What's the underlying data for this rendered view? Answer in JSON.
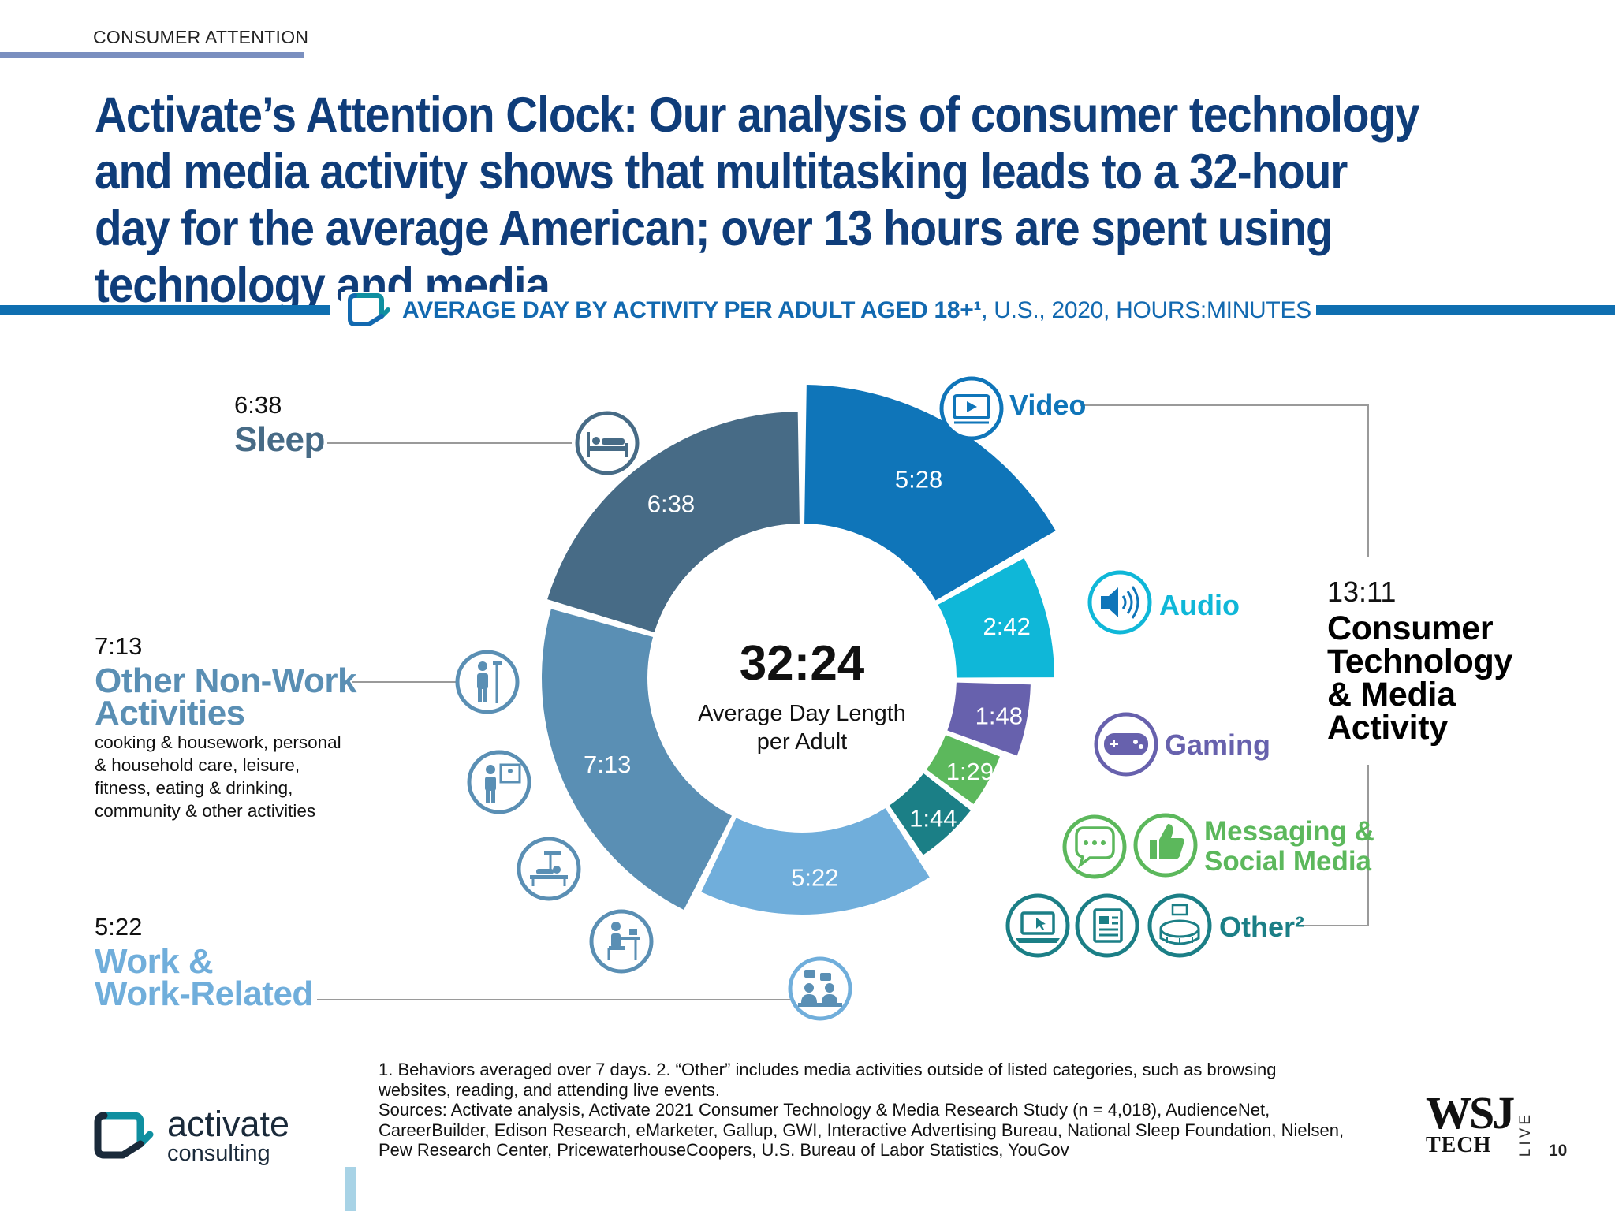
{
  "header": {
    "section_label": "CONSUMER ATTENTION",
    "headline": "Activate’s Attention Clock: Our analysis of consumer technology and media activity shows that multitasking leads to a 32-hour day for the average American; over 13 hours are spent using technology and media"
  },
  "subtitle": {
    "bold": "AVERAGE DAY BY ACTIVITY PER ADULT AGED 18+¹",
    "regular": ", U.S., 2020, HOURS:MINUTES"
  },
  "chart_data": {
    "type": "pie",
    "subtype": "donut",
    "unit": "hours:minutes",
    "center": {
      "value": "32:24",
      "label_line1": "Average Day Length",
      "label_line2": "per Adult"
    },
    "slices": [
      {
        "name": "Video",
        "label": "5:28",
        "minutes": 328,
        "color": "#0f75b9"
      },
      {
        "name": "Audio",
        "label": "2:42",
        "minutes": 162,
        "color": "#0fb7d8"
      },
      {
        "name": "Gaming",
        "label": "1:48",
        "minutes": 108,
        "color": "#6761ad"
      },
      {
        "name": "Messaging & Social Media",
        "label": "1:29",
        "minutes": 89,
        "color": "#5cb85c"
      },
      {
        "name": "Other²",
        "label": "1:44",
        "minutes": 104,
        "color": "#1b7f86"
      },
      {
        "name": "Work & Work-Related",
        "label": "5:22",
        "minutes": 322,
        "color": "#70aedb"
      },
      {
        "name": "Other Non-Work Activities",
        "label": "7:13",
        "minutes": 433,
        "color": "#5a8fb4"
      },
      {
        "name": "Sleep",
        "label": "6:38",
        "minutes": 398,
        "color": "#476b86"
      }
    ]
  },
  "left_labels": {
    "sleep": {
      "value": "6:38",
      "name": "Sleep",
      "color": "#476b86"
    },
    "other_nonwork": {
      "value": "7:13",
      "name_line1": "Other Non-Work",
      "name_line2": "Activities",
      "desc_line1": "cooking & housework, personal",
      "desc_line2": "& household care, leisure,",
      "desc_line3": "fitness, eating & drinking,",
      "desc_line4": "community & other activities",
      "color": "#5a8fb4"
    },
    "work": {
      "value": "5:22",
      "name_line1": "Work &",
      "name_line2": "Work-Related",
      "color": "#70aedb"
    }
  },
  "right_labels": {
    "video": "Video",
    "audio": "Audio",
    "gaming": "Gaming",
    "messaging_line1": "Messaging &",
    "messaging_line2": "Social Media",
    "other": "Other²"
  },
  "ctm_group": {
    "value": "13:11",
    "line1": "Consumer",
    "line2": "Technology",
    "line3": "& Media",
    "line4": "Activity"
  },
  "icons": [
    "play-video-icon",
    "speaker-icon",
    "gamepad-icon",
    "chat-bubble-icon",
    "thumbs-up-icon",
    "laptop-icon",
    "newspaper-icon",
    "stadium-icon",
    "bed-icon",
    "person-cleaning-icon",
    "person-reading-icon",
    "person-exercise-icon",
    "person-desk-icon",
    "meeting-icon"
  ],
  "footnotes": {
    "line1": "1. Behaviors averaged over 7 days.  2. “Other” includes media activities outside of listed categories, such as browsing",
    "line2": "websites, reading, and attending live events.",
    "line3": "Sources: Activate analysis, Activate 2021 Consumer Technology & Media Research Study (n = 4,018), AudienceNet,",
    "line4": "CareerBuilder, Edison Research, eMarketer, Gallup, GWI, Interactive Advertising Bureau, National Sleep Foundation, Nielsen,",
    "line5": "Pew Research Center, PricewaterhouseCoopers, U.S. Bureau of Labor Statistics, YouGov"
  },
  "logo": {
    "word1": "activate",
    "word2": "consulting",
    "color": "#0f8fa0"
  },
  "wsj": {
    "big": "WSJ",
    "tech": "TECH",
    "live": "LIVE"
  },
  "page_number": "10"
}
